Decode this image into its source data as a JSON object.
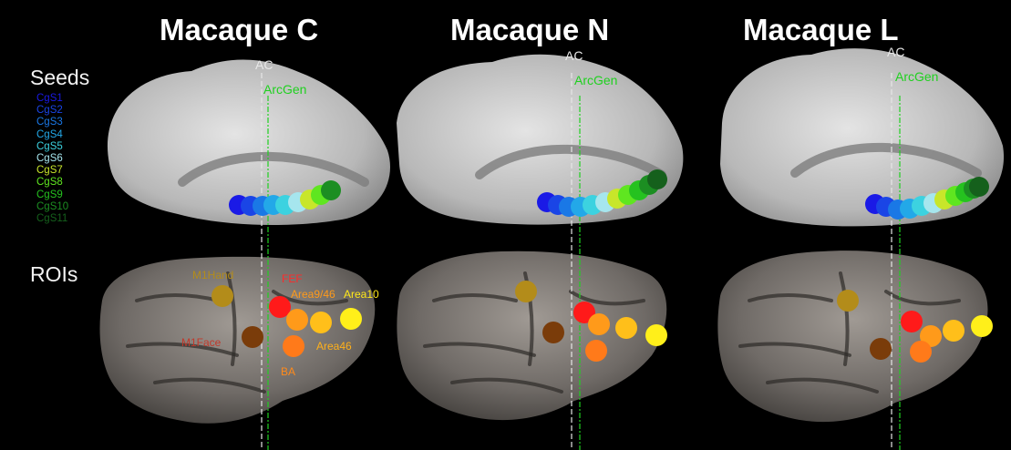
{
  "columns": [
    {
      "title": "Macaque C"
    },
    {
      "title": "Macaque N"
    },
    {
      "title": "Macaque L"
    }
  ],
  "rows": {
    "seeds": "Seeds",
    "rois": "ROIs"
  },
  "lines": {
    "ac": "AC",
    "arcgen": "ArcGen"
  },
  "seeds": [
    {
      "label": "CgS1",
      "color": "#1a1ae6"
    },
    {
      "label": "CgS2",
      "color": "#1a45e6"
    },
    {
      "label": "CgS3",
      "color": "#1a78e6"
    },
    {
      "label": "CgS4",
      "color": "#23a8e8"
    },
    {
      "label": "CgS5",
      "color": "#3cd2e0"
    },
    {
      "label": "CgS6",
      "color": "#a6e6ee"
    },
    {
      "label": "CgS7",
      "color": "#c8e62a"
    },
    {
      "label": "CgS8",
      "color": "#5fe620"
    },
    {
      "label": "CgS9",
      "color": "#25c21f"
    },
    {
      "label": "CgS10",
      "color": "#1c8e22"
    },
    {
      "label": "CgS11",
      "color": "#15601c"
    }
  ],
  "rois": [
    {
      "label": "M1Hand",
      "color": "#b38c1a",
      "label_color": "#b38c1a"
    },
    {
      "label": "M1Face",
      "color": "#7a3c0a",
      "label_color": "#c0392b"
    },
    {
      "label": "FEF",
      "color": "#ff1a1a",
      "label_color": "#ff2a2a"
    },
    {
      "label": "Area9/46",
      "color": "#ff9a1a",
      "label_color": "#ff9a1a"
    },
    {
      "label": "Area10",
      "color": "#ffef1a",
      "label_color": "#ffe81a"
    },
    {
      "label": "Area46",
      "color": "#ffbf1a",
      "label_color": "#ffb01a"
    },
    {
      "label": "BA",
      "color": "#ff7a1a",
      "label_color": "#ff8a1a"
    }
  ]
}
